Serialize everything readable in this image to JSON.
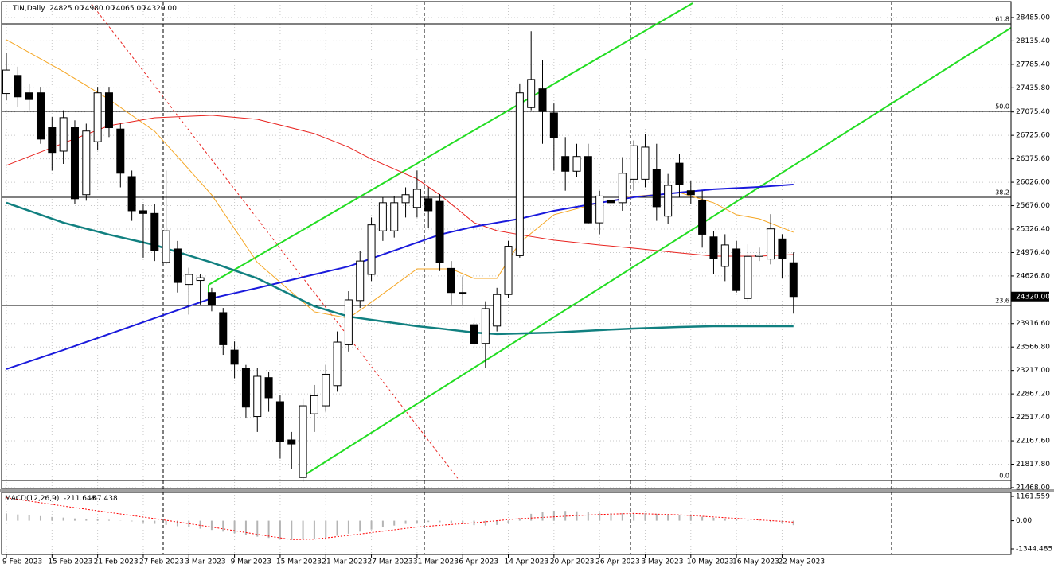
{
  "chart_data": [
    {
      "type": "candlestick",
      "title": "TIN,Daily",
      "header_values": [
        "24825.00",
        "24980.00",
        "24065.00",
        "24320.00"
      ],
      "open": [
        27350,
        27620,
        27360,
        27360,
        26840,
        26490,
        26840,
        25840,
        26630,
        27360,
        26820,
        26110,
        25600,
        25560,
        24830,
        25030,
        24500,
        24560,
        24380,
        24080,
        23520,
        23250,
        22530,
        23110,
        22750,
        22180,
        21620,
        22570,
        22690,
        22990,
        23600,
        24260,
        24650,
        25300,
        25300,
        25720,
        25650,
        25780,
        25740,
        24740,
        24380,
        23900,
        23620,
        23880,
        24350,
        24930,
        27140,
        27420,
        27060,
        26410,
        26190,
        26410,
        25420,
        25760,
        25720,
        26070,
        26070,
        26220,
        25520,
        26310,
        25900,
        25760,
        25210,
        24770,
        25030,
        24290,
        24920,
        24880,
        25180,
        24825
      ],
      "high": [
        27950,
        27750,
        27500,
        27450,
        27000,
        27100,
        26950,
        26900,
        27450,
        27450,
        26900,
        26200,
        25700,
        25700,
        26200,
        25150,
        24750,
        24650,
        24450,
        24150,
        23650,
        23300,
        23250,
        23200,
        22850,
        22300,
        22800,
        23000,
        23300,
        23800,
        24400,
        25000,
        25500,
        25800,
        25820,
        25950,
        26200,
        25950,
        25850,
        24850,
        24620,
        24000,
        24250,
        24450,
        25150,
        27500,
        28280,
        27850,
        27200,
        26700,
        26600,
        26600,
        25900,
        25850,
        26400,
        26650,
        26750,
        26600,
        26150,
        26450,
        26050,
        25900,
        25300,
        25250,
        25150,
        25100,
        25050,
        25550,
        25250,
        24980
      ],
      "low": [
        27250,
        27150,
        27100,
        26600,
        26200,
        26300,
        25700,
        25750,
        26500,
        26700,
        25950,
        25450,
        24900,
        24850,
        24800,
        24380,
        24050,
        24200,
        24100,
        23450,
        23100,
        22500,
        22300,
        22600,
        21900,
        21750,
        21550,
        22300,
        22600,
        22900,
        23500,
        24150,
        24550,
        25150,
        25200,
        25500,
        25500,
        25350,
        24700,
        24200,
        24200,
        23550,
        23250,
        23800,
        24300,
        24900,
        27100,
        26600,
        26200,
        25900,
        26100,
        25400,
        25250,
        25650,
        25600,
        25900,
        25950,
        25450,
        25400,
        25800,
        25700,
        25050,
        24650,
        24550,
        24380,
        24250,
        24850,
        24800,
        24600,
        24065
      ],
      "close": [
        27700,
        27300,
        27260,
        26670,
        26470,
        26990,
        25780,
        26790,
        27360,
        26840,
        26160,
        25600,
        25560,
        25010,
        25300,
        24530,
        24650,
        24600,
        24200,
        23600,
        23310,
        22670,
        23130,
        22810,
        22160,
        22120,
        22690,
        22840,
        23160,
        23640,
        24270,
        24850,
        25390,
        25720,
        25720,
        25840,
        25920,
        25600,
        24830,
        24380,
        24360,
        23620,
        24140,
        24350,
        25070,
        27360,
        27560,
        27080,
        26690,
        26190,
        26410,
        25420,
        25820,
        25720,
        26160,
        26570,
        26550,
        25660,
        25980,
        25990,
        25840,
        25250,
        24890,
        25090,
        24410,
        24920,
        24940,
        25330,
        24890,
        24320
      ],
      "up_color": "#ffffff",
      "down_color": "#000000",
      "lines": [
        {
          "color": "#f5a623",
          "x": [
            0,
            5,
            9,
            13,
            18,
            22,
            27,
            30,
            32,
            36,
            39,
            41,
            43,
            45,
            48,
            52,
            55,
            59,
            62,
            64,
            66,
            69
          ],
          "values": [
            28153,
            27678,
            27262,
            26787,
            25837,
            24828,
            24092,
            23997,
            24235,
            24733,
            24733,
            24591,
            24591,
            25125,
            25541,
            25719,
            25814,
            25873,
            25719,
            25541,
            25481,
            25280
          ]
        },
        {
          "color": "#e8231f",
          "x": [
            0,
            5,
            9,
            13,
            18,
            22,
            27,
            30,
            32,
            36,
            38,
            41,
            43,
            45,
            48,
            52,
            55,
            59,
            62,
            66,
            69
          ],
          "values": [
            26277,
            26609,
            26870,
            26989,
            27025,
            26965,
            26752,
            26550,
            26372,
            26075,
            25838,
            25422,
            25303,
            25244,
            25161,
            25089,
            25042,
            24971,
            24923,
            24923,
            24947
          ]
        },
        {
          "color": "#1a1adc",
          "x": [
            0,
            5,
            9,
            13,
            18,
            22,
            27,
            30,
            32,
            36,
            38,
            41,
            45,
            48,
            52,
            55,
            59,
            62,
            66,
            69
          ],
          "values": [
            23237,
            23522,
            23760,
            23997,
            24294,
            24448,
            24650,
            24769,
            24888,
            25125,
            25244,
            25363,
            25481,
            25600,
            25719,
            25802,
            25873,
            25921,
            25956,
            25992
          ]
        },
        {
          "color": "#118080",
          "x": [
            0,
            5,
            9,
            13,
            18,
            22,
            27,
            30,
            32,
            36,
            38,
            41,
            43,
            48,
            52,
            55,
            59,
            62,
            66,
            69
          ],
          "values": [
            25719,
            25422,
            25244,
            25089,
            24828,
            24591,
            24175,
            24021,
            23973,
            23878,
            23843,
            23783,
            23760,
            23783,
            23819,
            23843,
            23866,
            23878,
            23878,
            23878
          ]
        }
      ],
      "levels": [
        {
          "value": 28390,
          "label": "61.8"
        },
        {
          "value": 27084,
          "label": "50.0"
        },
        {
          "value": 25802,
          "label": "38.2"
        },
        {
          "value": 24187,
          "label": "23.6"
        },
        {
          "value": 21575,
          "label": "0.0"
        }
      ],
      "last": {
        "value": 24320,
        "label": "24320.00"
      },
      "ylim": [
        21444,
        28722
      ],
      "yticks": [
        {
          "value": 28485,
          "label": "28485.00"
        },
        {
          "value": 28135.4,
          "label": "28135.40"
        },
        {
          "value": 27785.4,
          "label": "27785.40"
        },
        {
          "value": 27435.8,
          "label": "27435.80"
        },
        {
          "value": 27075.4,
          "label": "27075.40"
        },
        {
          "value": 26725.6,
          "label": "26725.60"
        },
        {
          "value": 26375.6,
          "label": "26375.60"
        },
        {
          "value": 26026,
          "label": "26026.00"
        },
        {
          "value": 25676,
          "label": "25676.00"
        },
        {
          "value": 25326.4,
          "label": "25326.40"
        },
        {
          "value": 24976.4,
          "label": "24976.40"
        },
        {
          "value": 24626.8,
          "label": "24626.80"
        },
        {
          "value": 23916.6,
          "label": "23916.60"
        },
        {
          "value": 23566.8,
          "label": "23566.80"
        },
        {
          "value": 23217,
          "label": "23217.00"
        },
        {
          "value": 22867.2,
          "label": "22867.20"
        },
        {
          "value": 22517.4,
          "label": "22517.40"
        },
        {
          "value": 22167.6,
          "label": "22167.60"
        },
        {
          "value": 21817.8,
          "label": "21817.80"
        },
        {
          "value": 21468,
          "label": "21468.00"
        }
      ],
      "xticks": [
        {
          "value": 0,
          "label": "9 Feb 2023"
        },
        {
          "value": 4,
          "label": "15 Feb 2023"
        },
        {
          "value": 8,
          "label": "21 Feb 2023"
        },
        {
          "value": 12,
          "label": "27 Feb 2023"
        },
        {
          "value": 16,
          "label": "3 Mar 2023"
        },
        {
          "value": 20,
          "label": "9 Mar 2023"
        },
        {
          "value": 24,
          "label": "15 Mar 2023"
        },
        {
          "value": 28,
          "label": "21 Mar 2023"
        },
        {
          "value": 32,
          "label": "27 Mar 2023"
        },
        {
          "value": 36,
          "label": "31 Mar 2023"
        },
        {
          "value": 40,
          "label": "6 Apr 2023"
        },
        {
          "value": 44,
          "label": "14 Apr 2023"
        },
        {
          "value": 48,
          "label": "20 Apr 2023"
        },
        {
          "value": 52,
          "label": "26 Apr 2023"
        },
        {
          "value": 56,
          "label": "3 May 2023"
        },
        {
          "value": 60,
          "label": "10 May 2023"
        },
        {
          "value": 64,
          "label": "16 May 2023"
        },
        {
          "value": 68,
          "label": "22 May 2023"
        }
      ],
      "grid": true
    },
    {
      "type": "macd",
      "title": "MACD(12,26,9)",
      "last_labels": [
        "-211.648",
        "-67.438"
      ],
      "histogram": {
        "color": "#b4b4b4",
        "values": [
          350,
          300,
          260,
          220,
          180,
          150,
          110,
          80,
          60,
          40,
          10,
          -30,
          -80,
          -150,
          -200,
          -260,
          -320,
          -380,
          -440,
          -520,
          -600,
          -680,
          -760,
          -820,
          -880,
          -920,
          -900,
          -860,
          -800,
          -720,
          -620,
          -520,
          -420,
          -320,
          -230,
          -150,
          -90,
          -60,
          -70,
          -110,
          -160,
          -210,
          -230,
          -200,
          -130,
          120,
          330,
          440,
          480,
          470,
          450,
          410,
          380,
          360,
          360,
          370,
          360,
          330,
          310,
          280,
          240,
          190,
          140,
          100,
          60,
          20,
          -20,
          -60,
          -130,
          -211.648
        ]
      },
      "signal": {
        "color": "#ff0000",
        "x": [
          0,
          5,
          9,
          13,
          18,
          22,
          25,
          27,
          30,
          36,
          41,
          45,
          52,
          55,
          59,
          62,
          66,
          69
        ],
        "values": [
          1100,
          700,
          400,
          100,
          -300,
          -650,
          -900,
          -880,
          -700,
          -300,
          -100,
          100,
          300,
          350,
          280,
          180,
          40,
          -67.438
        ]
      },
      "ylim": [
        -1610,
        1351
      ],
      "yticks": [
        {
          "value": 1161.559,
          "label": "1161.559"
        },
        {
          "value": 0,
          "label": "0.00"
        },
        {
          "value": -1344.485,
          "label": "-1344.485"
        }
      ]
    }
  ]
}
